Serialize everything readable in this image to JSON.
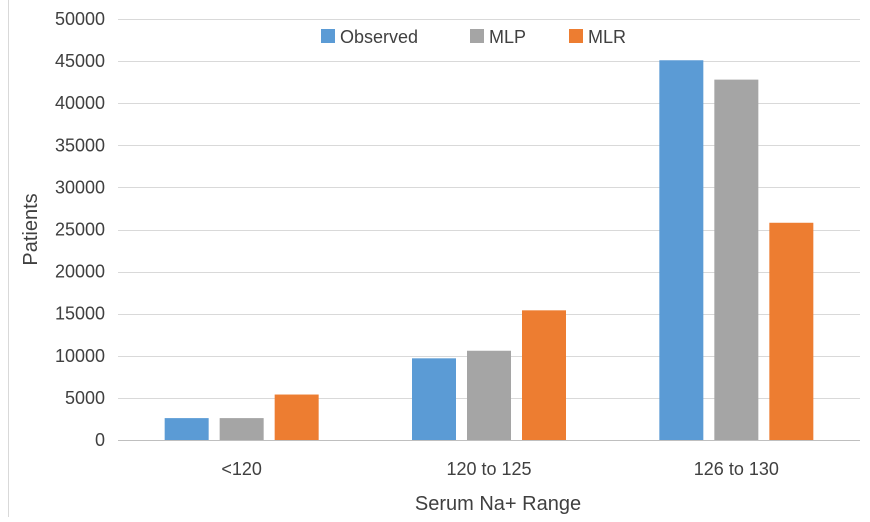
{
  "chart_data": {
    "type": "bar",
    "title": "",
    "xlabel": "Serum Na+ Range",
    "ylabel": "Patients",
    "categories": [
      "<120",
      "120 to 125",
      "126 to 130"
    ],
    "series": [
      {
        "name": "Observed",
        "color": "#5B9BD5",
        "values": [
          2600,
          9700,
          45100
        ]
      },
      {
        "name": "MLP",
        "color": "#A5A5A5",
        "values": [
          2600,
          10600,
          42800
        ]
      },
      {
        "name": "MLR",
        "color": "#ED7D31",
        "values": [
          5400,
          15400,
          25800
        ]
      }
    ],
    "ylim": [
      0,
      50000
    ],
    "yticks": [
      "0",
      "5000",
      "10000",
      "15000",
      "20000",
      "25000",
      "30000",
      "35000",
      "40000",
      "45000",
      "50000"
    ],
    "grid": true,
    "legend_position": "top"
  }
}
